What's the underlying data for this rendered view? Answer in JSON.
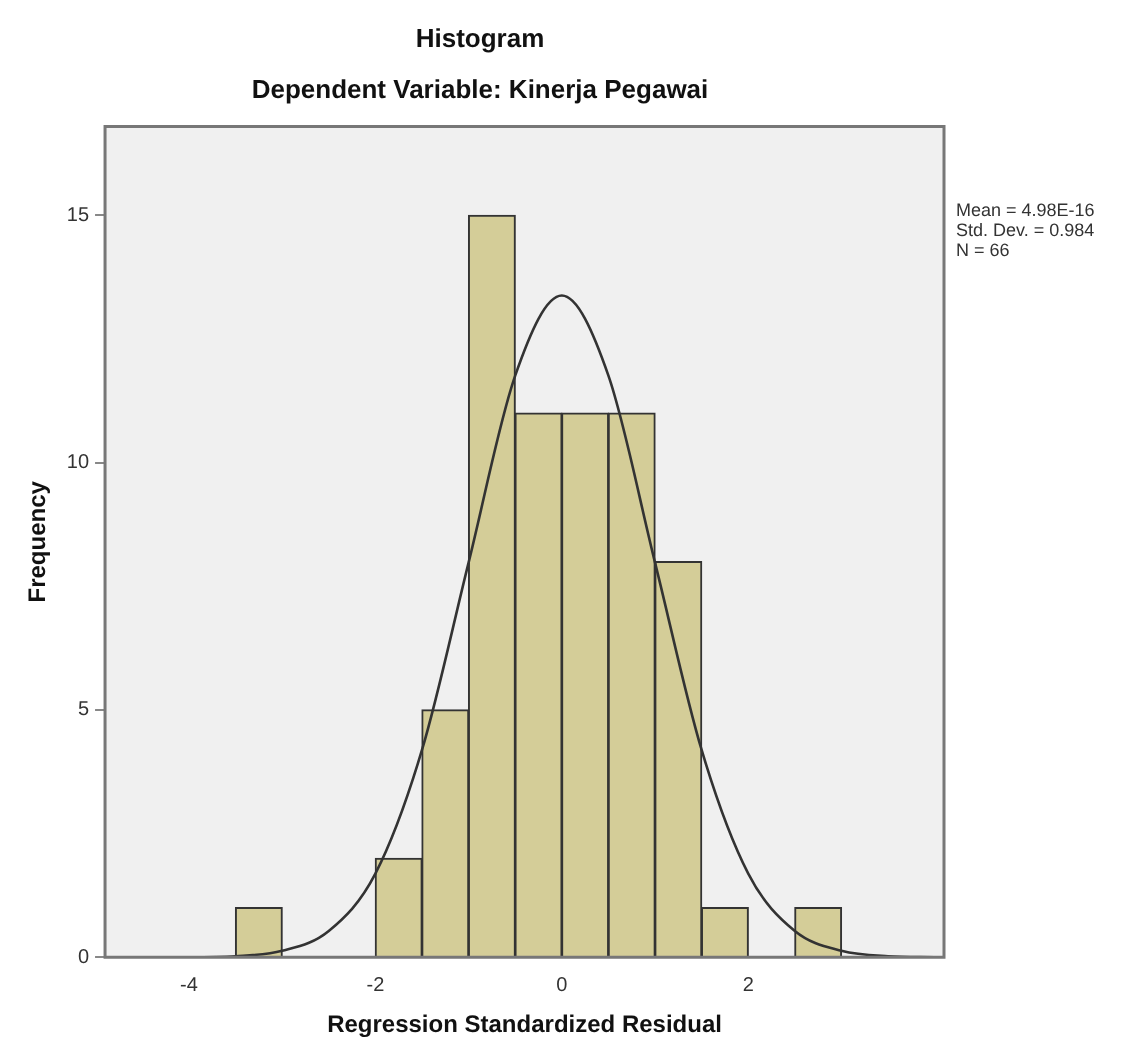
{
  "chart_data": {
    "type": "histogram",
    "title": "Histogram",
    "subtitle": "Dependent Variable: Kinerja Pegawai",
    "xlabel": "Regression Standardized Residual",
    "ylabel": "Frequency",
    "annotations": [
      "Mean = 4.98E-16",
      "Std. Dev. = 0.984",
      "N = 66"
    ],
    "bins": [
      -3.5,
      -3,
      -2.5,
      -2,
      -1.5,
      -1,
      -0.5,
      0,
      0.5,
      1,
      1.5,
      2,
      2.5,
      3
    ],
    "values": [
      1,
      0,
      0,
      2,
      5,
      15,
      11,
      11,
      11,
      8,
      1,
      0,
      1
    ],
    "color": "#d4cd98",
    "series": [
      {
        "type": "line",
        "color": "#333333",
        "x": [
          -4.5,
          -4,
          -3.5,
          -3,
          -2.5,
          -2,
          -1.5,
          -1,
          -0.5,
          0,
          0.5,
          1,
          1.5,
          2,
          2.5,
          3,
          3.5,
          4
        ],
        "values": [
          0,
          0,
          0.02,
          0.13,
          0.53,
          1.69,
          4.19,
          7.98,
          11.76,
          13.38,
          11.76,
          7.98,
          4.19,
          1.69,
          0.53,
          0.13,
          0.02,
          0
        ]
      }
    ],
    "xlim": [
      -4.9,
      4.1
    ],
    "xticks": [
      -4,
      -2,
      0,
      2
    ],
    "ylim": [
      0,
      16.8
    ],
    "yticks": [
      0,
      5,
      10,
      15
    ],
    "grid": false,
    "legend": false,
    "marker": "none"
  }
}
